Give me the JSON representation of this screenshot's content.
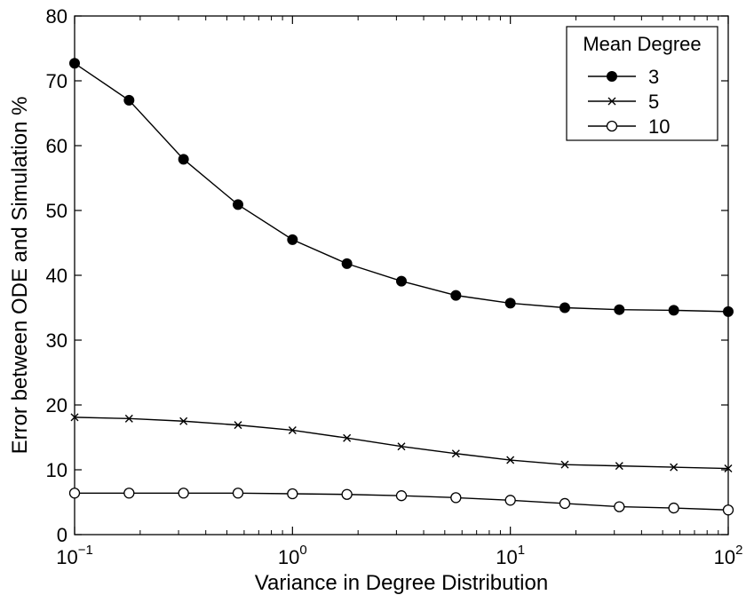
{
  "chart_data": {
    "type": "line",
    "xscale": "log",
    "xlim": [
      0.1,
      100
    ],
    "ylim": [
      0,
      80
    ],
    "xlabel": "Variance in Degree Distribution",
    "ylabel": "Error between ODE and Simulation %",
    "xticks": [
      {
        "value": 0.1,
        "base": "10",
        "exp": "−1"
      },
      {
        "value": 1,
        "base": "10",
        "exp": "0"
      },
      {
        "value": 10,
        "base": "10",
        "exp": "1"
      },
      {
        "value": 100,
        "base": "10",
        "exp": "2"
      }
    ],
    "yticks": [
      "0",
      "10",
      "20",
      "30",
      "40",
      "50",
      "60",
      "70",
      "80"
    ],
    "grid": false,
    "legend": {
      "title": "Mean Degree",
      "position": "top-right"
    },
    "x": [
      0.1,
      0.1778,
      0.3162,
      0.5623,
      1,
      1.778,
      3.162,
      5.623,
      10,
      17.78,
      31.62,
      56.23,
      100
    ],
    "series": [
      {
        "name": "3",
        "marker": "filled-circle",
        "values": [
          72.7,
          67.0,
          57.9,
          50.9,
          45.5,
          41.8,
          39.1,
          36.9,
          35.7,
          35.0,
          34.7,
          34.6,
          34.4
        ]
      },
      {
        "name": "5",
        "marker": "x",
        "values": [
          18.1,
          17.9,
          17.5,
          16.9,
          16.1,
          14.9,
          13.6,
          12.5,
          11.5,
          10.8,
          10.6,
          10.4,
          10.2
        ]
      },
      {
        "name": "10",
        "marker": "open-circle",
        "values": [
          6.4,
          6.4,
          6.4,
          6.4,
          6.3,
          6.2,
          6.0,
          5.7,
          5.3,
          4.8,
          4.3,
          4.1,
          3.8
        ]
      }
    ]
  }
}
